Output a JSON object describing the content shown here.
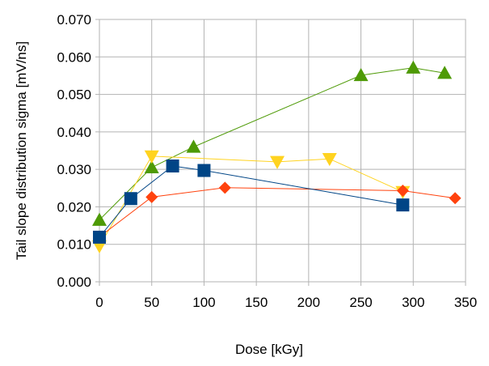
{
  "chart_data": {
    "type": "scatter",
    "title": "",
    "xlabel": "Dose [kGy]",
    "ylabel": "Tail slope distribution sigma  [mV/ns]",
    "xlim": [
      0,
      350
    ],
    "ylim": [
      0,
      0.07
    ],
    "xticks": [
      0,
      50,
      100,
      150,
      200,
      250,
      300,
      350
    ],
    "yticks": [
      0,
      0.01,
      0.02,
      0.03,
      0.04,
      0.05,
      0.06,
      0.07
    ],
    "xtick_labels": [
      "0",
      "50",
      "100",
      "150",
      "200",
      "250",
      "300",
      "350"
    ],
    "ytick_labels": [
      "0.000",
      "0.010",
      "0.020",
      "0.030",
      "0.040",
      "0.050",
      "0.060",
      "0.070"
    ],
    "grid": true,
    "legend": "none",
    "series": [
      {
        "name": "green-triangles",
        "marker": "triangle-up",
        "color": "#4e9a06",
        "x": [
          0,
          50,
          90,
          250,
          300,
          330
        ],
        "y": [
          0.0165,
          0.0305,
          0.036,
          0.0551,
          0.0571,
          0.0557
        ]
      },
      {
        "name": "yellow-triangles",
        "marker": "triangle-down",
        "color": "#ffd320",
        "x": [
          0,
          50,
          170,
          220,
          290
        ],
        "y": [
          0.0095,
          0.0335,
          0.032,
          0.0328,
          0.024
        ]
      },
      {
        "name": "red-diamonds",
        "marker": "diamond",
        "color": "#ff420e",
        "x": [
          0,
          50,
          120,
          290,
          340
        ],
        "y": [
          0.012,
          0.0226,
          0.0251,
          0.0243,
          0.0223
        ]
      },
      {
        "name": "blue-squares",
        "marker": "square",
        "color": "#004586",
        "x": [
          0,
          30,
          70,
          100,
          290
        ],
        "y": [
          0.0119,
          0.0222,
          0.0309,
          0.0297,
          0.0205
        ]
      }
    ]
  }
}
